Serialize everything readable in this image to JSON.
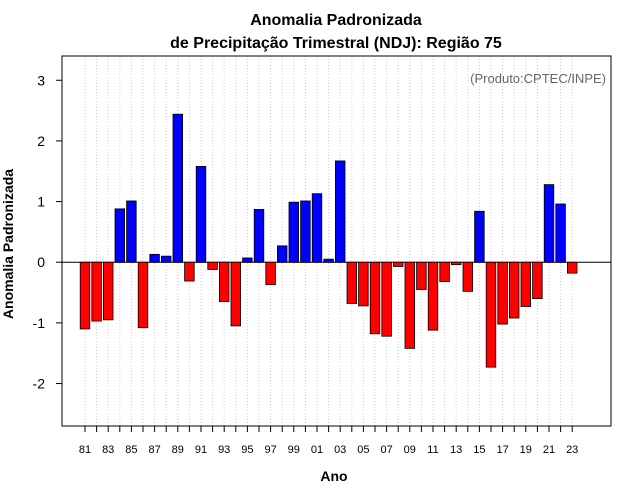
{
  "chart_data": {
    "type": "bar",
    "title": "Anomalia Padronizada",
    "subtitle": "de Precipitação Trimestral (NDJ): Região 75",
    "xlabel": "Ano",
    "ylabel": "Anomalia Padronizada",
    "annotation": "(Produto:CPTEC/INPE)",
    "ylim": [
      -2.7,
      3.4
    ],
    "yticks": [
      -2,
      -1,
      0,
      1,
      2,
      3
    ],
    "xtick_labels": [
      "81",
      "83",
      "85",
      "87",
      "89",
      "91",
      "93",
      "95",
      "97",
      "99",
      "01",
      "03",
      "05",
      "07",
      "09",
      "11",
      "13",
      "15",
      "17",
      "19",
      "21",
      "23"
    ],
    "categories": [
      "81",
      "82",
      "83",
      "84",
      "85",
      "86",
      "87",
      "88",
      "89",
      "90",
      "91",
      "92",
      "93",
      "94",
      "95",
      "96",
      "97",
      "98",
      "99",
      "00",
      "01",
      "02",
      "03",
      "04",
      "05",
      "06",
      "07",
      "08",
      "09",
      "10",
      "11",
      "12",
      "13",
      "14",
      "15",
      "16",
      "17",
      "18",
      "19",
      "20",
      "21",
      "22",
      "23"
    ],
    "values": [
      -1.1,
      -0.97,
      -0.95,
      0.88,
      1.01,
      -1.08,
      0.13,
      0.1,
      2.44,
      -0.31,
      1.58,
      -0.12,
      -0.65,
      -1.05,
      0.07,
      0.87,
      -0.37,
      0.27,
      0.99,
      1.01,
      1.13,
      0.05,
      1.67,
      -0.68,
      -0.72,
      -1.18,
      -1.22,
      -0.07,
      -1.42,
      -0.45,
      -1.12,
      -0.32,
      -0.04,
      -0.48,
      0.84,
      -1.73,
      -1.02,
      -0.92,
      -0.73,
      -0.6,
      1.28,
      0.96,
      -0.18
    ],
    "positive_color": "#0000ff",
    "negative_color": "#ff0000",
    "grid": true
  }
}
